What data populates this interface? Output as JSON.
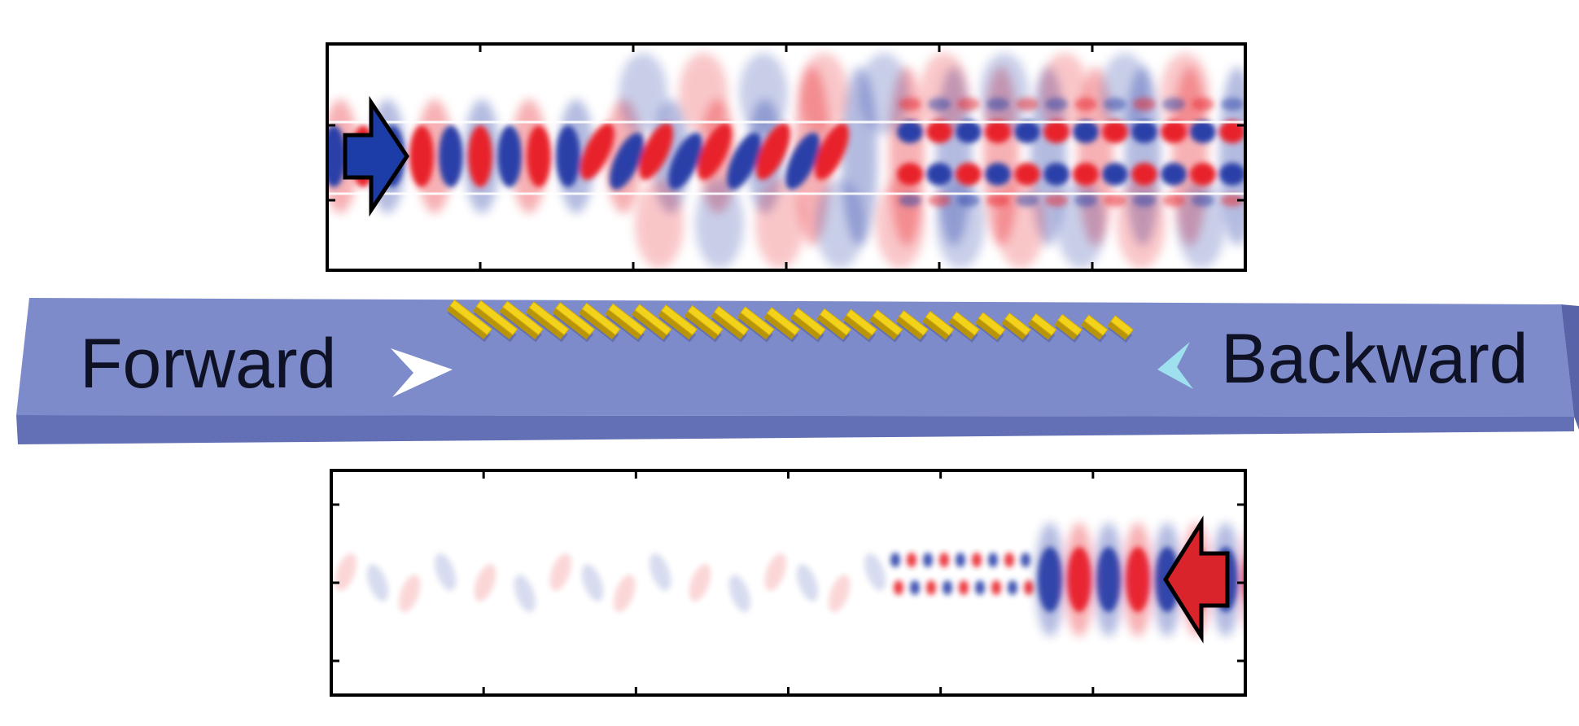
{
  "waveguide": {
    "forward_label": "Forward",
    "backward_label": "Backward",
    "antenna_count": 26,
    "colors": {
      "waveguide_top": "#6f7fc6",
      "waveguide_front": "#5a66b2",
      "antenna": "#f2d21a",
      "forward_arrow": "#ffffff",
      "backward_arrow": "#9fe0ee"
    }
  },
  "field_panels": [
    {
      "name": "forward-field-panel",
      "direction": "forward",
      "input_arrow": "right-arrow-icon"
    },
    {
      "name": "backward-field-panel",
      "direction": "backward",
      "input_arrow": "left-arrow-icon"
    }
  ],
  "field_colors": {
    "positive": "#e8202a",
    "negative": "#2a3fa8"
  }
}
